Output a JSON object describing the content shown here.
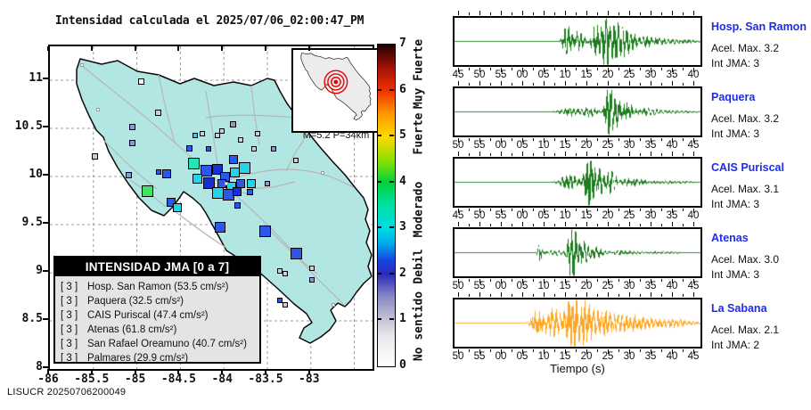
{
  "title": "Intensidad calculada el 2025/07/06_02:00:47_PM",
  "footer": "LISUCR 20250706200049",
  "map": {
    "x_ticks": [
      "-86",
      "-85.5",
      "-85",
      "-84.5",
      "-84",
      "-83.5",
      "-83"
    ],
    "y_ticks": [
      "11",
      "10.5",
      "10",
      "9.5",
      "9",
      "8.5",
      "8"
    ],
    "inset_caption": "M=5.2 P=34km",
    "legend": {
      "header": "INTENSIDAD JMA [0 a 7]",
      "rows": [
        {
          "jma": "[ 3 ]",
          "label": "Hosp. San Ramon (53.5 cm/s²)"
        },
        {
          "jma": "[ 3 ]",
          "label": "Paquera (32.5 cm/s²)"
        },
        {
          "jma": "[ 3 ]",
          "label": "CAIS Puriscal (47.4 cm/s²)"
        },
        {
          "jma": "[ 3 ]",
          "label": "Atenas (61.8 cm/s²)"
        },
        {
          "jma": "[ 3 ]",
          "label": "San Rafael Oreamuno (40.7 cm/s²)"
        },
        {
          "jma": "[ 3 ]",
          "label": "Palmares (29.9 cm/s²)"
        }
      ]
    },
    "colorbar": {
      "ticks": [
        "0",
        "1",
        "2",
        "3",
        "4",
        "5",
        "6",
        "7"
      ],
      "categories": [
        {
          "text": "No sentido",
          "value": 0.85
        },
        {
          "text": "Debil",
          "value": 2.15
        },
        {
          "text": "Moderado",
          "value": 3.4
        },
        {
          "text": "Fuerte",
          "value": 5.05
        },
        {
          "text": "Muy Fuerte",
          "value": 6.35
        }
      ]
    },
    "marker_colors": {
      "w": "#ffffff",
      "wb": "#f6f6f6",
      "g": "#cdcdd8",
      "l": "#9494d2",
      "b": "#2e56e8",
      "db": "#1b2ed6",
      "c": "#25d3e8",
      "t": "#27e2b2",
      "gr": "#3fe463"
    }
  },
  "seismo": {
    "xlabel": "Tiempo (s)"
  },
  "chart_data": [
    {
      "type": "map-scatter",
      "title": "Intensidad calculada el 2025/07/06_02:00:47_PM",
      "x_range": [
        -86,
        -82.3
      ],
      "y_range": [
        8,
        11.35
      ],
      "grid": true,
      "magnitude_text": "M=5.2 P=34km",
      "intensity_scale": {
        "min": 0,
        "max": 7,
        "labels": [
          "No sentido",
          "Debil",
          "Moderado",
          "Fuerte",
          "Muy Fuerte"
        ]
      },
      "stations": [
        {
          "name": "Hosp. San Ramon",
          "int_jma": 3,
          "accel_cms2": 53.5
        },
        {
          "name": "Paquera",
          "int_jma": 3,
          "accel_cms2": 32.5
        },
        {
          "name": "CAIS Puriscal",
          "int_jma": 3,
          "accel_cms2": 47.4
        },
        {
          "name": "Atenas",
          "int_jma": 3,
          "accel_cms2": 61.8
        },
        {
          "name": "San Rafael Oreamuno",
          "int_jma": 3,
          "accel_cms2": 40.7
        },
        {
          "name": "Palmares",
          "int_jma": 3,
          "accel_cms2": 29.9
        }
      ],
      "markers": [
        [
          -84.4,
          10.29,
          "b",
          7
        ],
        [
          -83.89,
          10.18,
          "b",
          10
        ],
        [
          -84.35,
          10.13,
          "t",
          13
        ],
        [
          -84.2,
          10.06,
          "b",
          13
        ],
        [
          -84.07,
          10.07,
          "db",
          12
        ],
        [
          -83.99,
          10.0,
          "b",
          11
        ],
        [
          -83.87,
          10.04,
          "c",
          11
        ],
        [
          -83.76,
          10.09,
          "c",
          13
        ],
        [
          -84.3,
          9.98,
          "c",
          11
        ],
        [
          -84.17,
          9.93,
          "db",
          13
        ],
        [
          -84.02,
          9.93,
          "b",
          10
        ],
        [
          -83.92,
          9.89,
          "c",
          11
        ],
        [
          -83.81,
          9.93,
          "b",
          10
        ],
        [
          -83.68,
          9.93,
          "c",
          10
        ],
        [
          -84.07,
          9.83,
          "c",
          13
        ],
        [
          -83.95,
          9.81,
          "b",
          13
        ],
        [
          -83.85,
          9.84,
          "db",
          10
        ],
        [
          -83.7,
          9.84,
          "b",
          7
        ],
        [
          -83.84,
          9.7,
          "b",
          7
        ],
        [
          -84.61,
          9.73,
          "b",
          10
        ],
        [
          -84.53,
          9.68,
          "c",
          10
        ],
        [
          -84.88,
          9.85,
          "gr",
          13
        ],
        [
          -84.75,
          10.05,
          "b",
          6
        ],
        [
          -84.66,
          10.03,
          "b",
          10
        ],
        [
          -84.04,
          9.47,
          "b",
          12
        ],
        [
          -83.53,
          9.43,
          "b",
          13
        ],
        [
          -83.17,
          9.2,
          "b",
          13
        ],
        [
          -85.63,
          11.16,
          "w",
          4
        ],
        [
          -84.95,
          10.99,
          "wb",
          7
        ],
        [
          -85.45,
          10.69,
          "w",
          4
        ],
        [
          -84.76,
          10.66,
          "g",
          7
        ],
        [
          -83.89,
          10.54,
          "l",
          7
        ],
        [
          -85.05,
          10.35,
          "l",
          7
        ],
        [
          -84.33,
          10.43,
          "c",
          6
        ],
        [
          -84.25,
          10.44,
          "g",
          6
        ],
        [
          -84.07,
          10.43,
          "g",
          6
        ],
        [
          -84.02,
          10.47,
          "g",
          6
        ],
        [
          -83.81,
          10.38,
          "g",
          6
        ],
        [
          -83.61,
          10.44,
          "g",
          6
        ],
        [
          -84.18,
          10.29,
          "b",
          6
        ],
        [
          -83.43,
          10.29,
          "l",
          6
        ],
        [
          -83.65,
          10.29,
          "g",
          6
        ],
        [
          -85.48,
          10.21,
          "g",
          7
        ],
        [
          -85.09,
          10.01,
          "l",
          7
        ],
        [
          -83.17,
          10.17,
          "g",
          6
        ],
        [
          -82.86,
          10.04,
          "w",
          4
        ],
        [
          -83.5,
          9.93,
          "l",
          6
        ],
        [
          -83.36,
          9.02,
          "g",
          6
        ],
        [
          -83.3,
          8.99,
          "g",
          6
        ],
        [
          -82.99,
          9.05,
          "g",
          6
        ],
        [
          -82.99,
          8.93,
          "l",
          6
        ],
        [
          -83.36,
          8.71,
          "b",
          6
        ],
        [
          -83.3,
          8.67,
          "g",
          6
        ],
        [
          -82.74,
          8.67,
          "w",
          4
        ],
        [
          -83.97,
          9.93,
          "w",
          4
        ],
        [
          -85.05,
          10.51,
          "l",
          7
        ]
      ]
    },
    {
      "type": "line",
      "name": "Hosp. San Ramon",
      "acel": "Acel. Max. 3.2",
      "jma": "Int JMA: 3",
      "color": "#1e7d1e",
      "x_ticks": [
        "45",
        "50",
        "55",
        "00",
        "05",
        "10",
        "15",
        "20",
        "25",
        "30",
        "35",
        "40"
      ],
      "seed": 11,
      "base": 0.012,
      "amp": 26,
      "bursts": [
        [
          0.455,
          0.018,
          0.55
        ],
        [
          0.5,
          0.03,
          0.35
        ],
        [
          0.575,
          0.022,
          0.6
        ],
        [
          0.615,
          0.018,
          1.0
        ],
        [
          0.655,
          0.025,
          0.7
        ],
        [
          0.7,
          0.03,
          0.45
        ],
        [
          0.78,
          0.06,
          0.18
        ],
        [
          0.9,
          0.1,
          0.08
        ]
      ]
    },
    {
      "type": "line",
      "name": "Paquera",
      "acel": "Acel. Max. 3.2",
      "jma": "Int JMA: 3",
      "color": "#1e7d1e",
      "x_ticks": [
        "50",
        "55",
        "00",
        "05",
        "10",
        "15",
        "20",
        "25",
        "30",
        "35",
        "40",
        "45"
      ],
      "seed": 22,
      "base": 0.012,
      "amp": 26,
      "bursts": [
        [
          0.47,
          0.05,
          0.16
        ],
        [
          0.555,
          0.03,
          0.18
        ],
        [
          0.625,
          0.016,
          1.0
        ],
        [
          0.655,
          0.02,
          0.55
        ],
        [
          0.7,
          0.025,
          0.35
        ],
        [
          0.78,
          0.05,
          0.12
        ],
        [
          0.9,
          0.1,
          0.05
        ]
      ]
    },
    {
      "type": "line",
      "name": "CAIS Puriscal",
      "acel": "Acel. Max. 3.1",
      "jma": "Int JMA: 3",
      "color": "#1e7d1e",
      "x_ticks": [
        "45",
        "50",
        "55",
        "00",
        "05",
        "10",
        "15",
        "20",
        "25",
        "30",
        "35",
        "40"
      ],
      "seed": 33,
      "base": 0.012,
      "amp": 26,
      "bursts": [
        [
          0.465,
          0.04,
          0.28
        ],
        [
          0.545,
          0.02,
          1.0
        ],
        [
          0.585,
          0.02,
          0.6
        ],
        [
          0.635,
          0.022,
          0.45
        ],
        [
          0.72,
          0.05,
          0.15
        ],
        [
          0.87,
          0.1,
          0.06
        ]
      ]
    },
    {
      "type": "line",
      "name": "Atenas",
      "acel": "Acel. Max. 3.0",
      "jma": "Int JMA: 3",
      "color": "#1e7d1e",
      "x_ticks": [
        "50",
        "55",
        "00",
        "05",
        "10",
        "15",
        "20",
        "25",
        "30",
        "35",
        "40",
        "45"
      ],
      "seed": 44,
      "base": 0.012,
      "amp": 26,
      "bursts": [
        [
          0.345,
          0.01,
          0.32
        ],
        [
          0.41,
          0.05,
          0.1
        ],
        [
          0.465,
          0.012,
          0.5
        ],
        [
          0.483,
          0.014,
          1.05
        ],
        [
          0.52,
          0.022,
          0.45
        ],
        [
          0.57,
          0.03,
          0.2
        ],
        [
          0.68,
          0.08,
          0.08
        ],
        [
          0.85,
          0.1,
          0.04
        ]
      ]
    },
    {
      "type": "line",
      "name": "La Sabana",
      "acel": "Acel. Max. 2.1",
      "jma": "Int JMA: 2",
      "color": "#ffa722",
      "x_ticks": [
        "50",
        "55",
        "00",
        "05",
        "10",
        "15",
        "20",
        "25",
        "30",
        "35",
        "40",
        "45"
      ],
      "seed": 55,
      "base": 0.02,
      "amp": 24,
      "bursts": [
        [
          0.33,
          0.022,
          0.5
        ],
        [
          0.4,
          0.045,
          0.55
        ],
        [
          0.478,
          0.03,
          1.0
        ],
        [
          0.53,
          0.035,
          0.75
        ],
        [
          0.6,
          0.05,
          0.45
        ],
        [
          0.7,
          0.07,
          0.3
        ],
        [
          0.85,
          0.12,
          0.18
        ]
      ]
    }
  ]
}
